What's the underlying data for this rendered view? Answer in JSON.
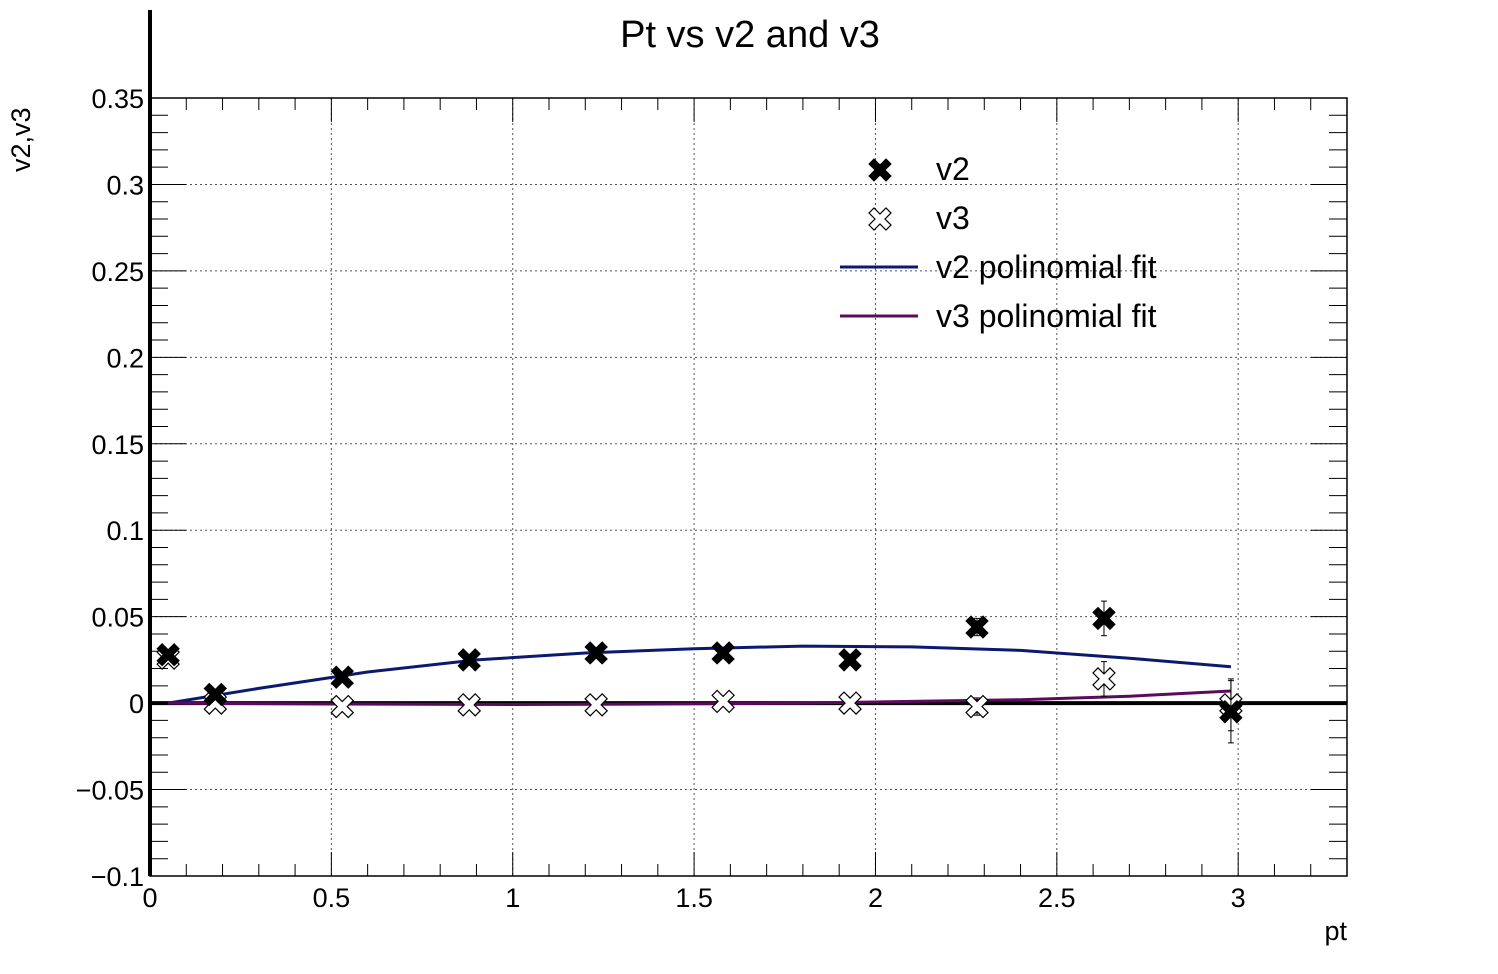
{
  "chart_data": {
    "type": "scatter",
    "title": "Pt vs v2 and v3",
    "xlabel": "pt",
    "ylabel": "v2,v3",
    "xlim": [
      0,
      3.3
    ],
    "ylim": [
      -0.1,
      0.35
    ],
    "x_ticks": [
      0,
      0.5,
      1,
      1.5,
      2,
      2.5,
      3
    ],
    "x_tick_labels": [
      "0",
      "0.5",
      "1",
      "1.5",
      "2",
      "2.5",
      "3"
    ],
    "y_ticks": [
      -0.1,
      -0.05,
      0,
      0.05,
      0.1,
      0.15,
      0.2,
      0.25,
      0.3,
      0.35
    ],
    "y_tick_labels": [
      "−0.1",
      "−0.05",
      "0",
      "0.05",
      "0.1",
      "0.15",
      "0.2",
      "0.25",
      "0.3",
      "0.35"
    ],
    "grid": true,
    "legend_position": "top-right",
    "series": [
      {
        "name": "v2",
        "kind": "points",
        "marker": "filled-x",
        "color": "#000000",
        "x": [
          0.05,
          0.18,
          0.53,
          0.88,
          1.23,
          1.58,
          1.93,
          2.28,
          2.63,
          2.98
        ],
        "y": [
          0.028,
          0.005,
          0.015,
          0.025,
          0.029,
          0.029,
          0.025,
          0.044,
          0.049,
          -0.005
        ],
        "err": [
          0.002,
          0.002,
          0.002,
          0.002,
          0.003,
          0.003,
          0.003,
          0.005,
          0.01,
          0.018
        ]
      },
      {
        "name": "v3",
        "kind": "points",
        "marker": "open-x",
        "color": "#000000",
        "x": [
          0.05,
          0.18,
          0.53,
          0.88,
          1.23,
          1.58,
          1.93,
          2.28,
          2.63,
          2.98
        ],
        "y": [
          0.026,
          0.0,
          -0.002,
          -0.001,
          -0.001,
          0.001,
          0.0,
          -0.002,
          0.014,
          -0.001
        ],
        "err": [
          0.002,
          0.002,
          0.002,
          0.002,
          0.003,
          0.003,
          0.003,
          0.005,
          0.01,
          0.015
        ]
      },
      {
        "name": "v2 polinomial fit",
        "kind": "line",
        "color": "#0b1a6e",
        "x": [
          0.05,
          0.3,
          0.6,
          0.9,
          1.2,
          1.5,
          1.8,
          2.1,
          2.4,
          2.7,
          2.98
        ],
        "y": [
          0.0,
          0.0085,
          0.018,
          0.025,
          0.029,
          0.0315,
          0.033,
          0.0325,
          0.0305,
          0.026,
          0.021
        ]
      },
      {
        "name": "v3 polinomial fit",
        "kind": "line",
        "color": "#5c0a5c",
        "x": [
          0.05,
          0.5,
          1.0,
          1.4,
          1.8,
          2.1,
          2.4,
          2.7,
          2.98
        ],
        "y": [
          0.0,
          -0.0005,
          -0.0008,
          -0.0005,
          0.0,
          0.001,
          0.002,
          0.004,
          0.007
        ]
      }
    ]
  }
}
